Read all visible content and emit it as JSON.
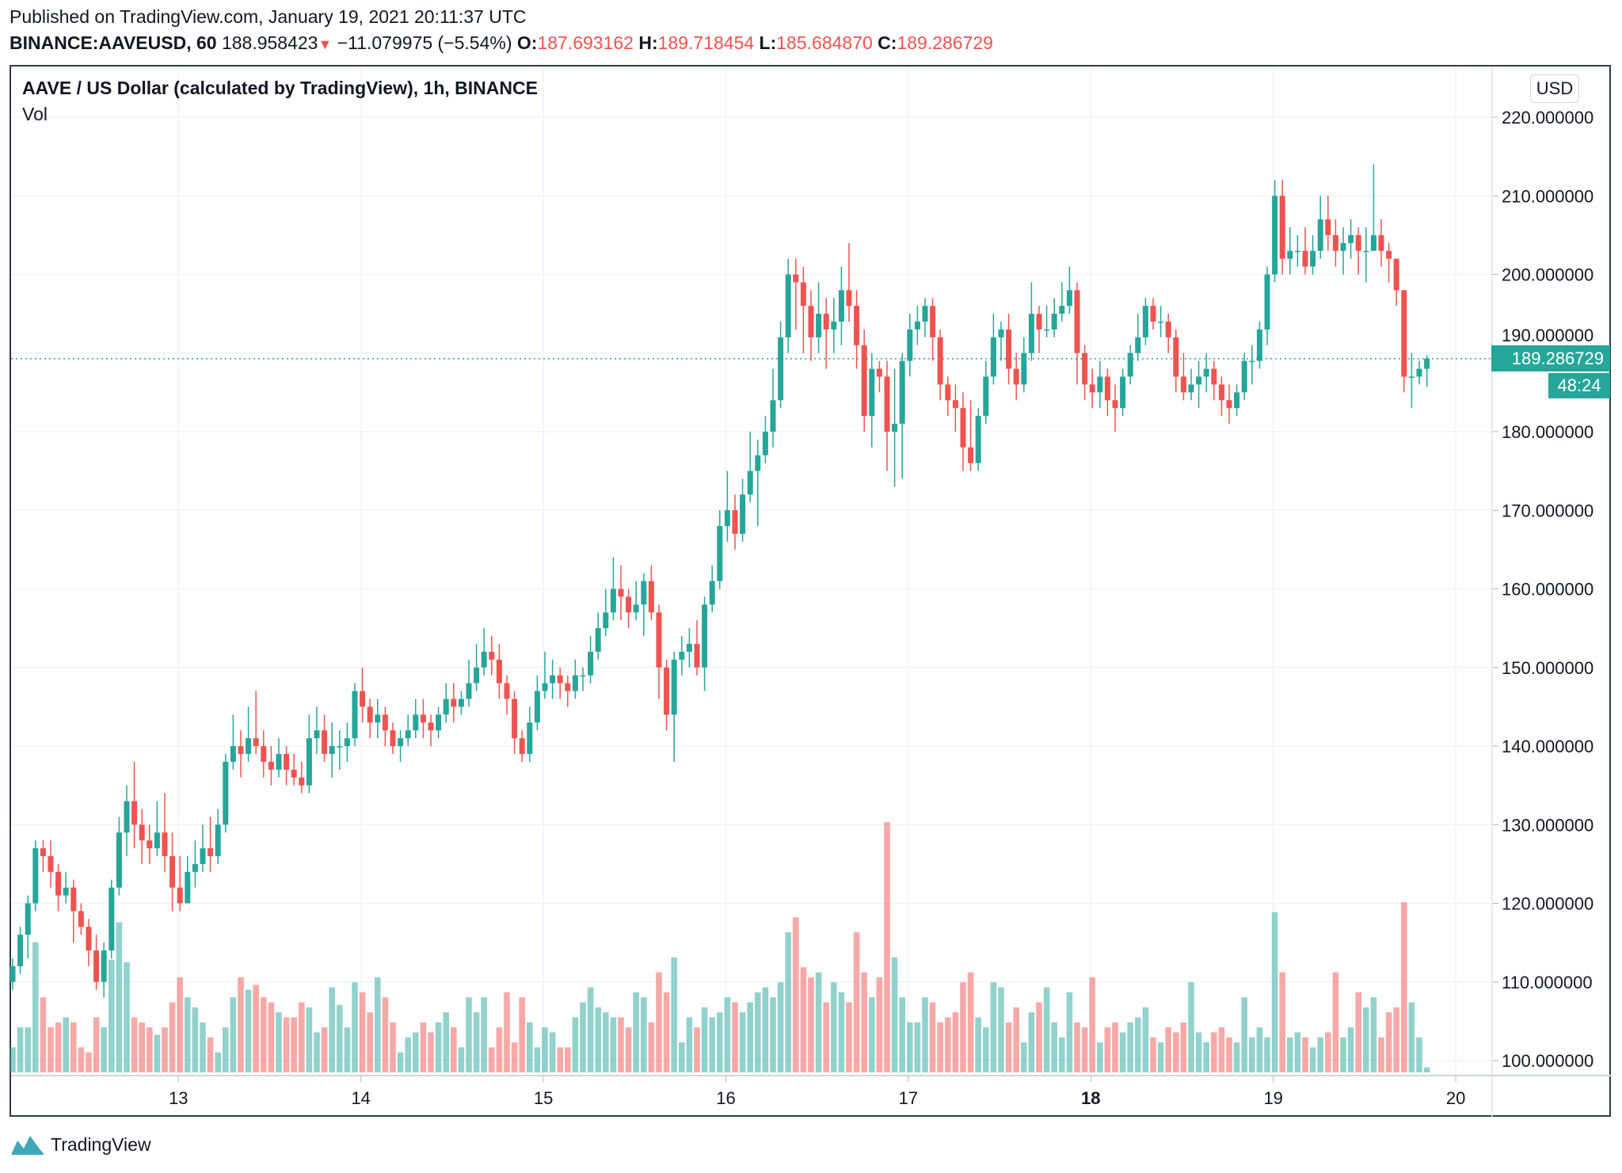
{
  "header": {
    "published": "Published on TradingView.com, January 19, 2021 20:11:37 UTC",
    "symbol": "BINANCE:AAVEUSD, 60",
    "last": "188.958423",
    "change": "−11.079975 (−5.54%)",
    "o_label": "O:",
    "o": "187.693162",
    "h_label": "H:",
    "h": "189.718454",
    "l_label": "L:",
    "l": "185.684870",
    "c_label": "C:",
    "c": "189.286729"
  },
  "legend": {
    "title": "AAVE / US Dollar (calculated by TradingView), 1h, BINANCE",
    "vol": "Vol"
  },
  "currency_button": "USD",
  "current_price_label": "189.286729",
  "countdown": "48:24",
  "footer": {
    "brand": "TradingView"
  },
  "colors": {
    "up": "#26a69a",
    "down": "#ef5350",
    "grid": "#f0f3fa"
  },
  "chart_data": {
    "type": "candlestick",
    "title": "AAVE / US Dollar (calculated by TradingView), 1h, BINANCE",
    "interval": "1h",
    "ylim": [
      96,
      224
    ],
    "yticks": [
      "220.000000",
      "210.000000",
      "200.000000",
      "190.000000",
      "180.000000",
      "170.000000",
      "160.000000",
      "150.000000",
      "140.000000",
      "130.000000",
      "120.000000",
      "110.000000",
      "100.000000"
    ],
    "ytick_values": [
      220,
      210,
      200,
      190,
      180,
      170,
      160,
      150,
      140,
      130,
      120,
      110,
      100
    ],
    "xticks": [
      "13",
      "14",
      "15",
      "16",
      "17",
      "18",
      "19",
      "20"
    ],
    "xtick_bar_index": [
      21.8,
      45.8,
      69.8,
      93.8,
      117.8,
      141.8,
      165.8,
      189.8
    ],
    "last_price": 189.286729,
    "first_open": 110,
    "close": [
      112,
      116,
      120,
      127,
      126,
      124,
      121,
      122,
      119,
      117,
      114,
      110,
      114,
      122,
      129,
      133,
      130,
      128,
      127,
      129,
      126,
      122,
      120,
      124,
      125,
      127,
      126,
      130,
      138,
      140,
      139,
      141,
      140,
      138,
      137,
      139,
      137,
      136,
      135,
      141,
      142,
      139,
      140,
      140,
      141,
      147,
      145,
      143,
      144,
      142,
      140,
      141,
      142,
      144,
      143,
      142,
      144,
      146,
      145,
      146,
      148,
      150,
      152,
      151,
      148,
      146,
      141,
      139,
      143,
      147,
      148,
      149,
      148,
      147,
      149,
      149,
      152,
      155,
      157,
      160,
      159,
      157,
      158,
      161,
      157,
      150,
      144,
      151,
      152,
      153,
      150,
      158,
      161,
      168,
      170,
      167,
      172,
      175,
      177,
      180,
      184,
      192,
      200,
      199,
      196,
      192,
      195,
      193,
      194,
      198,
      196,
      191,
      182,
      188,
      187,
      180,
      181,
      189,
      193,
      194,
      196,
      192,
      186,
      184,
      183,
      178,
      176,
      182,
      187,
      192,
      193,
      188,
      186,
      190,
      195,
      193,
      193,
      195,
      196,
      198,
      190,
      186,
      185,
      187,
      184,
      183,
      187,
      190,
      192,
      196,
      194,
      194,
      192,
      187,
      185,
      186,
      187,
      188,
      186,
      184,
      183,
      185,
      189,
      189,
      193,
      200,
      210,
      202,
      203,
      203,
      201,
      203,
      207,
      205,
      203,
      204,
      205,
      203,
      203,
      205,
      203,
      202,
      198,
      187,
      187,
      188,
      189.29
    ],
    "high": [
      113,
      117,
      121,
      128,
      128,
      128,
      125,
      124,
      123,
      120,
      118,
      116,
      115,
      123,
      131,
      135,
      138,
      132,
      130,
      133,
      134,
      129,
      126,
      126,
      128,
      130,
      131,
      132,
      139,
      144,
      142,
      145,
      147,
      142,
      140,
      141,
      140,
      139,
      138,
      144,
      145,
      144,
      143,
      142,
      143,
      148,
      150,
      146,
      146,
      145,
      143,
      142,
      144,
      146,
      146,
      144,
      145,
      148,
      148,
      147,
      151,
      153,
      155,
      154,
      153,
      149,
      147,
      142,
      145,
      149,
      152,
      151,
      150,
      149,
      151,
      150,
      154,
      157,
      160,
      164,
      163,
      160,
      161,
      162,
      163,
      158,
      151,
      152,
      154,
      155,
      156,
      159,
      163,
      170,
      175,
      172,
      174,
      180,
      179,
      182,
      188,
      194,
      202,
      202,
      201,
      198,
      199,
      197,
      197,
      201,
      204,
      198,
      193,
      190,
      189,
      189,
      188,
      190,
      195,
      196,
      197,
      197,
      193,
      187,
      186,
      185,
      184,
      183,
      189,
      195,
      194,
      195,
      190,
      192,
      199,
      196,
      196,
      197,
      199,
      201,
      199,
      191,
      188,
      189,
      188,
      186,
      188,
      191,
      195,
      197,
      197,
      196,
      195,
      193,
      190,
      188,
      189,
      190,
      189,
      187,
      186,
      186,
      190,
      191,
      194,
      201,
      212,
      212,
      206,
      205,
      206,
      205,
      210,
      210,
      207,
      206,
      207,
      206,
      206,
      214,
      207,
      204,
      202,
      198,
      190,
      189,
      189.72
    ],
    "low": [
      109,
      111,
      113,
      119,
      124,
      122,
      119,
      120,
      115,
      116,
      112,
      109,
      108,
      113,
      121,
      126,
      127,
      125,
      125,
      126,
      124,
      119,
      119,
      120,
      122,
      124,
      124,
      125,
      129,
      137,
      136,
      138,
      139,
      136,
      135,
      136,
      135,
      135,
      134,
      134,
      139,
      138,
      136,
      137,
      138,
      140,
      143,
      141,
      141,
      140,
      139,
      138,
      140,
      141,
      141,
      140,
      141,
      143,
      143,
      144,
      145,
      147,
      149,
      149,
      146,
      144,
      139,
      138,
      138,
      142,
      146,
      146,
      146,
      145,
      146,
      147,
      148,
      151,
      154,
      156,
      156,
      155,
      156,
      154,
      156,
      146,
      142,
      138,
      149,
      150,
      149,
      147,
      157,
      160,
      166,
      165,
      166,
      171,
      168,
      176,
      178,
      183,
      190,
      193,
      190,
      189,
      190,
      188,
      190,
      191,
      194,
      188,
      180,
      178,
      185,
      175,
      173,
      174,
      187,
      191,
      192,
      189,
      184,
      182,
      180,
      175,
      175,
      175,
      181,
      186,
      189,
      186,
      184,
      185,
      189,
      190,
      192,
      192,
      194,
      195,
      186,
      184,
      183,
      183,
      182,
      180,
      182,
      186,
      189,
      191,
      193,
      192,
      190,
      185,
      184,
      184,
      183,
      185,
      184,
      182,
      181,
      182,
      184,
      186,
      188,
      191,
      199,
      200,
      200,
      201,
      200,
      200,
      202,
      203,
      201,
      200,
      202,
      200,
      199,
      203,
      201,
      199,
      196,
      185,
      183,
      186,
      185.68
    ],
    "volume_relative": [
      10,
      18,
      18,
      52,
      30,
      18,
      20,
      22,
      20,
      10,
      8,
      22,
      18,
      45,
      60,
      44,
      22,
      20,
      18,
      15,
      18,
      28,
      38,
      30,
      26,
      20,
      14,
      8,
      18,
      30,
      38,
      33,
      35,
      30,
      28,
      24,
      22,
      22,
      28,
      26,
      16,
      18,
      34,
      27,
      18,
      36,
      32,
      24,
      38,
      30,
      20,
      8,
      14,
      16,
      20,
      16,
      20,
      24,
      18,
      10,
      30,
      24,
      30,
      10,
      18,
      32,
      12,
      30,
      20,
      10,
      18,
      16,
      10,
      10,
      22,
      28,
      34,
      26,
      24,
      22,
      22,
      18,
      32,
      30,
      20,
      40,
      32,
      46,
      12,
      22,
      18,
      26,
      22,
      24,
      30,
      28,
      24,
      28,
      32,
      34,
      30,
      36,
      56,
      62,
      42,
      38,
      40,
      28,
      36,
      32,
      28,
      56,
      40,
      30,
      38,
      100,
      46,
      30,
      20,
      20,
      30,
      28,
      20,
      22,
      24,
      36,
      40,
      22,
      18,
      36,
      34,
      20,
      26,
      12,
      24,
      28,
      34,
      20,
      14,
      32,
      20,
      18,
      38,
      12,
      18,
      20,
      16,
      20,
      22,
      26,
      14,
      12,
      18,
      16,
      20,
      36,
      16,
      12,
      16,
      18,
      14,
      12,
      30,
      14,
      18,
      14,
      64,
      40,
      14,
      16,
      14,
      10,
      14,
      16,
      40,
      14,
      18,
      32,
      26,
      30,
      14,
      24,
      26,
      68,
      28,
      14,
      2
    ]
  }
}
